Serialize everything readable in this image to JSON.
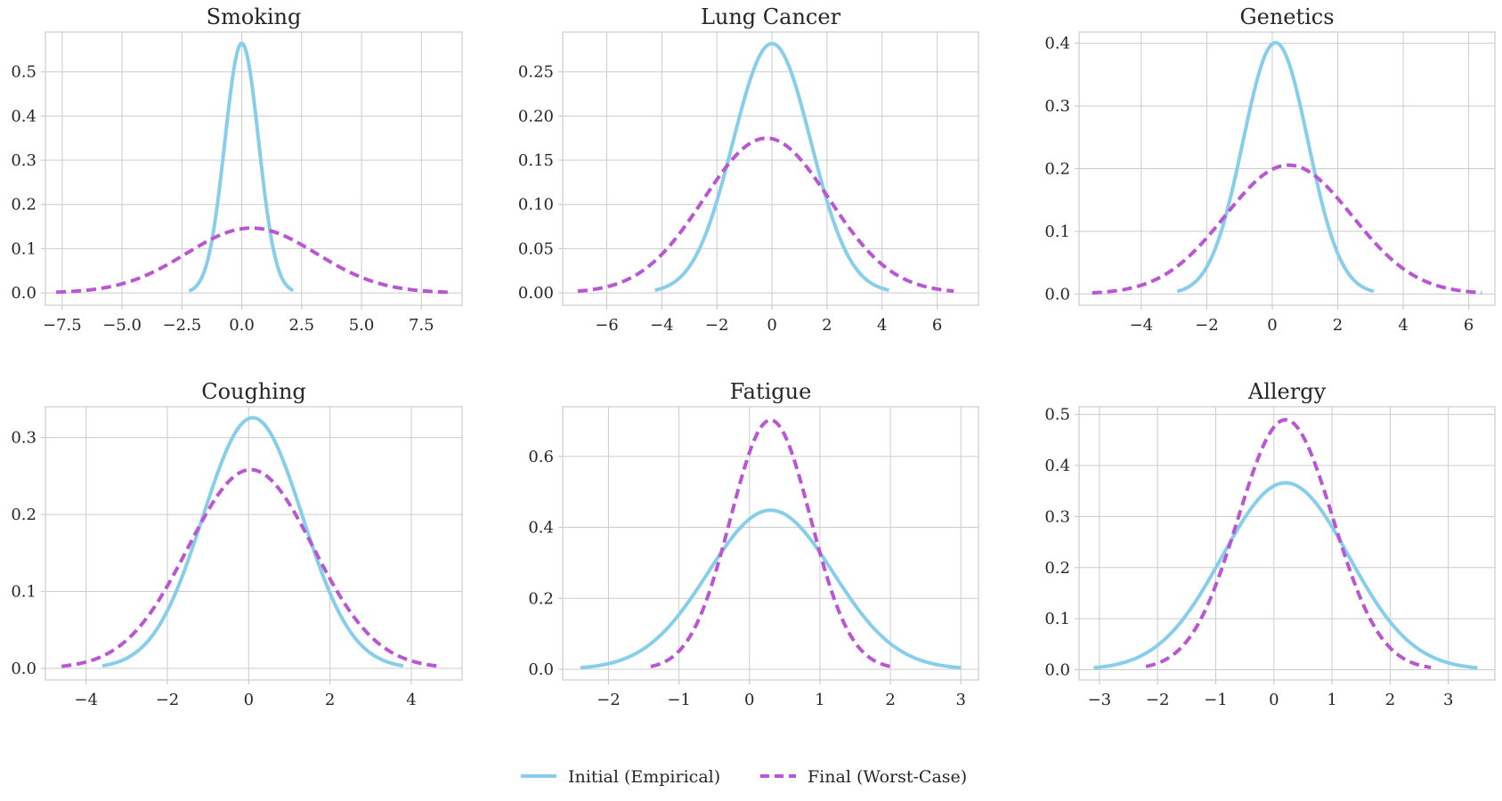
{
  "legend": {
    "entries": [
      {
        "label": "Initial (Empirical)",
        "color": "#87CEEB",
        "style": "solid"
      },
      {
        "label": "Final (Worst-Case)",
        "color": "#BA55D3",
        "style": "dashed"
      }
    ],
    "placement": "bottom-center"
  },
  "chart_data": [
    {
      "type": "line",
      "title": "Smoking",
      "xlim": [
        -8.2,
        9.2
      ],
      "ylim": [
        -0.028,
        0.59
      ],
      "xticks": [
        -7.5,
        -5.0,
        -2.5,
        0.0,
        2.5,
        5.0,
        7.5
      ],
      "xtick_labels": [
        "−7.5",
        "−5.0",
        "−2.5",
        "0.0",
        "2.5",
        "5.0",
        "7.5"
      ],
      "yticks": [
        0.0,
        0.1,
        0.2,
        0.3,
        0.4,
        0.5
      ],
      "ytick_labels": [
        "0.0",
        "0.1",
        "0.2",
        "0.3",
        "0.4",
        "0.5"
      ],
      "grid": true,
      "series": [
        {
          "name": "Initial (Empirical)",
          "distribution": "normal",
          "mean": 0.0,
          "std": 0.707,
          "x_range": [
            -2.2,
            2.15
          ]
        },
        {
          "name": "Final (Worst-Case)",
          "distribution": "normal",
          "mean": 0.4,
          "std": 2.72,
          "x_range": [
            -7.75,
            8.6
          ]
        }
      ]
    },
    {
      "type": "line",
      "title": "Lung Cancer",
      "xlim": [
        -7.6,
        7.5
      ],
      "ylim": [
        -0.014,
        0.295
      ],
      "xticks": [
        -6,
        -4,
        -2,
        0,
        2,
        4,
        6
      ],
      "xtick_labels": [
        "−6",
        "−4",
        "−2",
        "0",
        "2",
        "4",
        "6"
      ],
      "yticks": [
        0.0,
        0.05,
        0.1,
        0.15,
        0.2,
        0.25
      ],
      "ytick_labels": [
        "0.00",
        "0.05",
        "0.10",
        "0.15",
        "0.20",
        "0.25"
      ],
      "grid": true,
      "series": [
        {
          "name": "Initial (Empirical)",
          "distribution": "normal",
          "mean": 0.0,
          "std": 1.415,
          "x_range": [
            -4.25,
            4.25
          ]
        },
        {
          "name": "Final (Worst-Case)",
          "distribution": "normal",
          "mean": -0.2,
          "std": 2.28,
          "x_range": [
            -7.05,
            6.6
          ]
        }
      ]
    },
    {
      "type": "line",
      "title": "Genetics",
      "xlim": [
        -5.9,
        6.8
      ],
      "ylim": [
        -0.018,
        0.418
      ],
      "xticks": [
        -4,
        -2,
        0,
        2,
        4,
        6
      ],
      "xtick_labels": [
        "−4",
        "−2",
        "0",
        "2",
        "4",
        "6"
      ],
      "yticks": [
        0.0,
        0.1,
        0.2,
        0.3,
        0.4
      ],
      "ytick_labels": [
        "0.0",
        "0.1",
        "0.2",
        "0.3",
        "0.4"
      ],
      "grid": true,
      "series": [
        {
          "name": "Initial (Empirical)",
          "distribution": "normal",
          "mean": 0.1,
          "std": 0.995,
          "x_range": [
            -2.9,
            3.1
          ]
        },
        {
          "name": "Final (Worst-Case)",
          "distribution": "normal",
          "mean": 0.5,
          "std": 1.94,
          "x_range": [
            -5.5,
            6.4
          ]
        }
      ]
    },
    {
      "type": "line",
      "title": "Coughing",
      "xlim": [
        -5.0,
        5.25
      ],
      "ylim": [
        -0.015,
        0.34
      ],
      "xticks": [
        -4,
        -2,
        0,
        2,
        4
      ],
      "xtick_labels": [
        "−4",
        "−2",
        "0",
        "2",
        "4"
      ],
      "yticks": [
        0.0,
        0.1,
        0.2,
        0.3
      ],
      "ytick_labels": [
        "0.0",
        "0.1",
        "0.2",
        "0.3"
      ],
      "grid": true,
      "series": [
        {
          "name": "Initial (Empirical)",
          "distribution": "normal",
          "mean": 0.1,
          "std": 1.225,
          "x_range": [
            -3.6,
            3.8
          ]
        },
        {
          "name": "Final (Worst-Case)",
          "distribution": "normal",
          "mean": 0.05,
          "std": 1.545,
          "x_range": [
            -4.6,
            4.75
          ]
        }
      ]
    },
    {
      "type": "line",
      "title": "Fatigue",
      "xlim": [
        -2.65,
        3.25
      ],
      "ylim": [
        -0.03,
        0.74
      ],
      "xticks": [
        -2,
        -1,
        0,
        1,
        2,
        3
      ],
      "xtick_labels": [
        "−2",
        "−1",
        "0",
        "1",
        "2",
        "3"
      ],
      "yticks": [
        0.0,
        0.2,
        0.4,
        0.6
      ],
      "ytick_labels": [
        "0.0",
        "0.2",
        "0.4",
        "0.6"
      ],
      "grid": true,
      "series": [
        {
          "name": "Initial (Empirical)",
          "distribution": "normal",
          "mean": 0.3,
          "std": 0.89,
          "x_range": [
            -2.4,
            3.0
          ]
        },
        {
          "name": "Final (Worst-Case)",
          "distribution": "normal",
          "mean": 0.3,
          "std": 0.568,
          "x_range": [
            -1.4,
            2.05
          ]
        }
      ]
    },
    {
      "type": "line",
      "title": "Allergy",
      "xlim": [
        -3.35,
        3.8
      ],
      "ylim": [
        -0.02,
        0.515
      ],
      "xticks": [
        -3,
        -2,
        -1,
        0,
        1,
        2,
        3
      ],
      "xtick_labels": [
        "−3",
        "−2",
        "−1",
        "0",
        "1",
        "2",
        "3"
      ],
      "yticks": [
        0.0,
        0.1,
        0.2,
        0.3,
        0.4,
        0.5
      ],
      "ytick_labels": [
        "0.0",
        "0.1",
        "0.2",
        "0.3",
        "0.4",
        "0.5"
      ],
      "grid": true,
      "series": [
        {
          "name": "Initial (Empirical)",
          "distribution": "normal",
          "mean": 0.2,
          "std": 1.09,
          "x_range": [
            -3.1,
            3.5
          ]
        },
        {
          "name": "Final (Worst-Case)",
          "distribution": "normal",
          "mean": 0.2,
          "std": 0.815,
          "x_range": [
            -2.2,
            2.7
          ]
        }
      ]
    }
  ]
}
